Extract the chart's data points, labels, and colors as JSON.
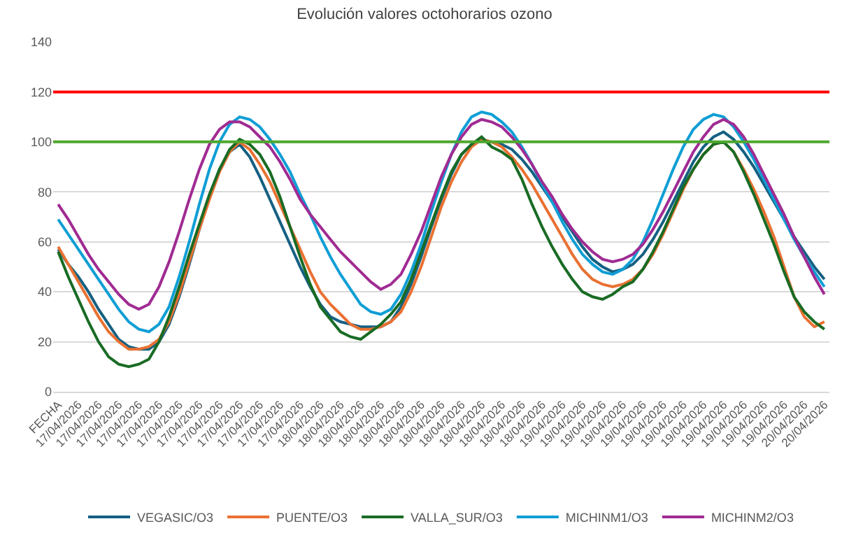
{
  "chart_data": {
    "type": "line",
    "title": "Evolución valores octohorarios ozono",
    "categories": [
      "FECHA",
      null,
      "17/04/2026",
      null,
      "17/04/2026",
      null,
      "17/04/2026",
      null,
      "17/04/2026",
      null,
      "17/04/2026",
      null,
      "17/04/2026",
      null,
      "17/04/2026",
      null,
      "17/04/2026",
      null,
      "17/04/2026",
      null,
      "17/04/2026",
      null,
      "17/04/2026",
      null,
      "17/04/2026",
      null,
      "18/04/2026",
      null,
      "18/04/2026",
      null,
      "18/04/2026",
      null,
      "18/04/2026",
      null,
      "18/04/2026",
      null,
      "18/04/2026",
      null,
      "18/04/2026",
      null,
      "18/04/2026",
      null,
      "18/04/2026",
      null,
      "18/04/2026",
      null,
      "18/04/2026",
      null,
      "18/04/2026",
      null,
      "19/04/2026",
      null,
      "19/04/2026",
      null,
      "19/04/2026",
      null,
      "19/04/2026",
      null,
      "19/04/2026",
      null,
      "19/04/2026",
      null,
      "19/04/2026",
      null,
      "19/04/2026",
      null,
      "19/04/2026",
      null,
      "19/04/2026",
      null,
      "19/04/2026",
      null,
      "19/04/2026",
      null,
      "20/04/2026",
      null,
      "20/04/2026"
    ],
    "series": [
      {
        "name": "VEGASIC/O3",
        "color": "#156082",
        "values": [
          57,
          51,
          46,
          40,
          33,
          27,
          21,
          18,
          17,
          17,
          20,
          27,
          38,
          51,
          65,
          78,
          89,
          96,
          99,
          94,
          86,
          77,
          68,
          59,
          50,
          42,
          35,
          30,
          28,
          27,
          26,
          26,
          26,
          28,
          34,
          43,
          54,
          66,
          77,
          87,
          95,
          99,
          101,
          100,
          99,
          97,
          93,
          88,
          82,
          76,
          70,
          64,
          58,
          53,
          50,
          48,
          49,
          51,
          55,
          61,
          68,
          76,
          84,
          92,
          98,
          102,
          104,
          101,
          96,
          90,
          83,
          76,
          69,
          62,
          56,
          50,
          45
        ]
      },
      {
        "name": "PUENTE/O3",
        "color": "#e97132",
        "values": [
          58,
          51,
          44,
          37,
          30,
          24,
          20,
          17,
          17,
          18,
          21,
          28,
          39,
          52,
          65,
          77,
          88,
          96,
          100,
          97,
          91,
          84,
          75,
          66,
          57,
          48,
          40,
          35,
          31,
          27,
          25,
          25,
          26,
          28,
          32,
          40,
          50,
          62,
          74,
          84,
          92,
          98,
          101,
          100,
          98,
          94,
          89,
          83,
          76,
          69,
          62,
          55,
          49,
          45,
          43,
          42,
          43,
          45,
          49,
          55,
          63,
          72,
          81,
          89,
          95,
          99,
          100,
          96,
          89,
          81,
          72,
          62,
          50,
          38,
          30,
          26,
          28
        ]
      },
      {
        "name": "VALLA_SUR/O3",
        "color": "#196b24",
        "values": [
          56,
          46,
          37,
          28,
          20,
          14,
          11,
          10,
          11,
          13,
          20,
          30,
          42,
          55,
          67,
          79,
          89,
          97,
          101,
          99,
          95,
          88,
          78,
          66,
          54,
          43,
          34,
          29,
          24,
          22,
          21,
          24,
          27,
          31,
          36,
          45,
          56,
          67,
          78,
          88,
          95,
          99,
          102,
          98,
          96,
          93,
          85,
          75,
          66,
          58,
          51,
          45,
          40,
          38,
          37,
          39,
          42,
          44,
          49,
          56,
          64,
          73,
          82,
          89,
          95,
          99,
          100,
          96,
          88,
          79,
          69,
          59,
          48,
          38,
          32,
          28,
          25
        ]
      },
      {
        "name": "MICHINM1/O3",
        "color": "#0f9ed5",
        "values": [
          69,
          63,
          57,
          51,
          45,
          39,
          33,
          28,
          25,
          24,
          27,
          34,
          46,
          60,
          75,
          89,
          100,
          107,
          110,
          109,
          106,
          101,
          95,
          88,
          79,
          71,
          62,
          54,
          47,
          41,
          35,
          32,
          31,
          33,
          39,
          48,
          59,
          72,
          84,
          95,
          104,
          110,
          112,
          111,
          108,
          104,
          98,
          91,
          83,
          76,
          68,
          61,
          55,
          51,
          48,
          47,
          49,
          53,
          60,
          69,
          79,
          89,
          98,
          105,
          109,
          111,
          110,
          106,
          100,
          93,
          85,
          77,
          69,
          61,
          54,
          48,
          42
        ]
      },
      {
        "name": "MICHINM2/O3",
        "color": "#a02b93",
        "values": [
          75,
          69,
          62,
          55,
          49,
          44,
          39,
          35,
          33,
          35,
          42,
          52,
          64,
          77,
          89,
          99,
          105,
          108,
          108,
          106,
          102,
          98,
          92,
          85,
          77,
          71,
          66,
          61,
          56,
          52,
          48,
          44,
          41,
          43,
          47,
          55,
          64,
          75,
          86,
          95,
          102,
          107,
          109,
          108,
          106,
          102,
          97,
          91,
          84,
          78,
          71,
          65,
          60,
          56,
          53,
          52,
          53,
          55,
          59,
          65,
          72,
          80,
          88,
          96,
          102,
          107,
          109,
          107,
          102,
          95,
          87,
          79,
          71,
          62,
          54,
          46,
          39
        ]
      }
    ],
    "ylim": [
      0,
      140
    ],
    "yticks": [
      0,
      20,
      40,
      60,
      80,
      100,
      120,
      140
    ],
    "grid": "y",
    "legend": "bottom",
    "marker": "none",
    "line_style": "solid",
    "ref_lines": [
      {
        "axis": "y",
        "value": 120,
        "color": "#ff0000"
      },
      {
        "axis": "y",
        "value": 100,
        "color": "#4ea72e"
      }
    ]
  }
}
